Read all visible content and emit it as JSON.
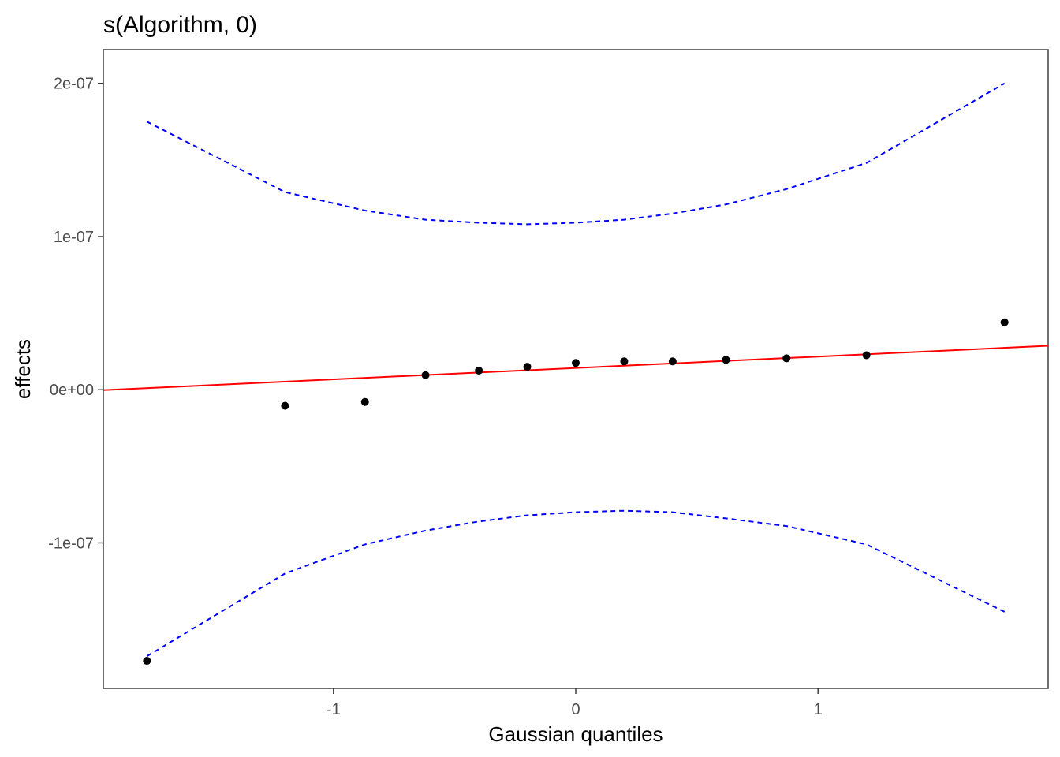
{
  "chart_data": {
    "type": "scatter",
    "title": "s(Algorithm, 0)",
    "xlabel": "Gaussian quantiles",
    "ylabel": "effects",
    "xlim": [
      -1.95,
      1.95
    ],
    "ylim": [
      -1.95e-07,
      2.22e-07
    ],
    "x_ticks": [
      {
        "value": -1,
        "label": "-1"
      },
      {
        "value": 0,
        "label": "0"
      },
      {
        "value": 1,
        "label": "1"
      }
    ],
    "y_ticks": [
      {
        "value": -1e-07,
        "label": "-1e-07"
      },
      {
        "value": 0,
        "label": "0e+00"
      },
      {
        "value": 1e-07,
        "label": "1e-07"
      },
      {
        "value": 2e-07,
        "label": "2e-07"
      }
    ],
    "grid": false,
    "points": {
      "x": [
        -1.77,
        -1.2,
        -0.87,
        -0.62,
        -0.4,
        -0.2,
        0.0,
        0.2,
        0.4,
        0.62,
        0.87,
        1.2,
        1.77
      ],
      "y": [
        -1.77e-07,
        -1.05e-08,
        -8e-09,
        9.5e-09,
        1.25e-08,
        1.5e-08,
        1.75e-08,
        1.85e-08,
        1.85e-08,
        1.95e-08,
        2.05e-08,
        2.25e-08,
        4.4e-08
      ],
      "color": "#000000"
    },
    "reference_line": {
      "x": [
        -1.95,
        1.95
      ],
      "y": [
        -3e-10,
        2.87e-08
      ],
      "color": "#ff0000"
    },
    "upper_band": {
      "x": [
        -1.77,
        -1.2,
        -0.87,
        -0.62,
        -0.4,
        -0.2,
        0.0,
        0.2,
        0.4,
        0.62,
        0.87,
        1.2,
        1.77
      ],
      "y": [
        1.75e-07,
        1.29e-07,
        1.17e-07,
        1.11e-07,
        1.09e-07,
        1.08e-07,
        1.09e-07,
        1.11e-07,
        1.15e-07,
        1.21e-07,
        1.31e-07,
        1.48e-07,
        2e-07
      ],
      "color": "#0000ff"
    },
    "lower_band": {
      "x": [
        -1.77,
        -1.2,
        -0.87,
        -0.62,
        -0.4,
        -0.2,
        0.0,
        0.2,
        0.4,
        0.62,
        0.87,
        1.2,
        1.77
      ],
      "y": [
        -1.74e-07,
        -1.2e-07,
        -1.01e-07,
        -9.2e-08,
        -8.6e-08,
        -8.2e-08,
        -8e-08,
        -7.9e-08,
        -8e-08,
        -8.4e-08,
        -8.9e-08,
        -1.01e-07,
        -1.45e-07
      ],
      "color": "#0000ff"
    }
  }
}
